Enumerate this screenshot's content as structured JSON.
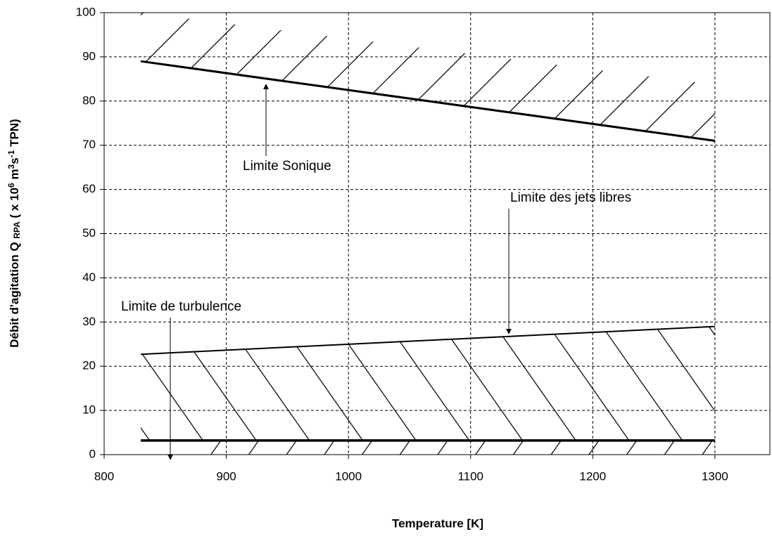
{
  "chart_data": {
    "type": "line",
    "x_label": "Temperature [K]",
    "y_label": [
      {
        "text": "Débit d'agitation Q "
      },
      {
        "text": "RPA",
        "style": "sub"
      },
      {
        "text": " ( x 10"
      },
      {
        "text": "6",
        "style": "sup"
      },
      {
        "text": " m"
      },
      {
        "text": "3",
        "style": "sup"
      },
      {
        "text": "s"
      },
      {
        "text": "-1",
        "style": "sup"
      },
      {
        "text": " TPN)"
      }
    ],
    "xlim": [
      800,
      1345
    ],
    "ylim": [
      0,
      100
    ],
    "xticks": [
      800,
      900,
      1000,
      1100,
      1200,
      1300
    ],
    "yticks": [
      0,
      10,
      20,
      30,
      40,
      50,
      60,
      70,
      80,
      90,
      100
    ],
    "grid": true,
    "x": [
      830,
      1300
    ],
    "series": [
      {
        "name": "Limite Sonique",
        "color": "#000000",
        "width": 3,
        "values": [
          89,
          71
        ]
      },
      {
        "name": "Limite des jets libres",
        "color": "#000000",
        "width": 2,
        "values": [
          22.7,
          29
        ]
      },
      {
        "name": "Limite de turbulence",
        "color": "#000000",
        "width": 3.5,
        "values": [
          3.2,
          3.2
        ]
      }
    ]
  }
}
